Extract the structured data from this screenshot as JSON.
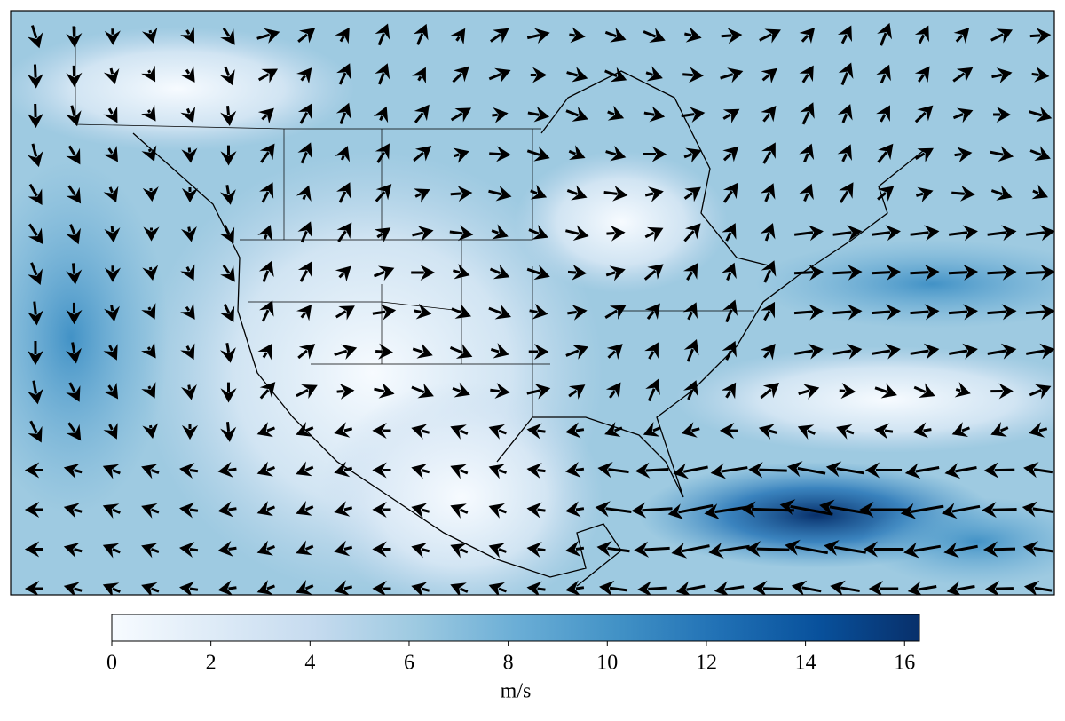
{
  "map": {
    "title_hidden": false,
    "colorbar": {
      "lim": [
        0,
        16.3
      ],
      "ticks": [
        0,
        2,
        4,
        6,
        8,
        10,
        12,
        14,
        16
      ],
      "label": "m/s",
      "colors": [
        "#f7fbff",
        "#deebf7",
        "#c6dbef",
        "#9ecae1",
        "#6baed6",
        "#4292c6",
        "#2171b5",
        "#08519c",
        "#08306b"
      ]
    }
  }
}
